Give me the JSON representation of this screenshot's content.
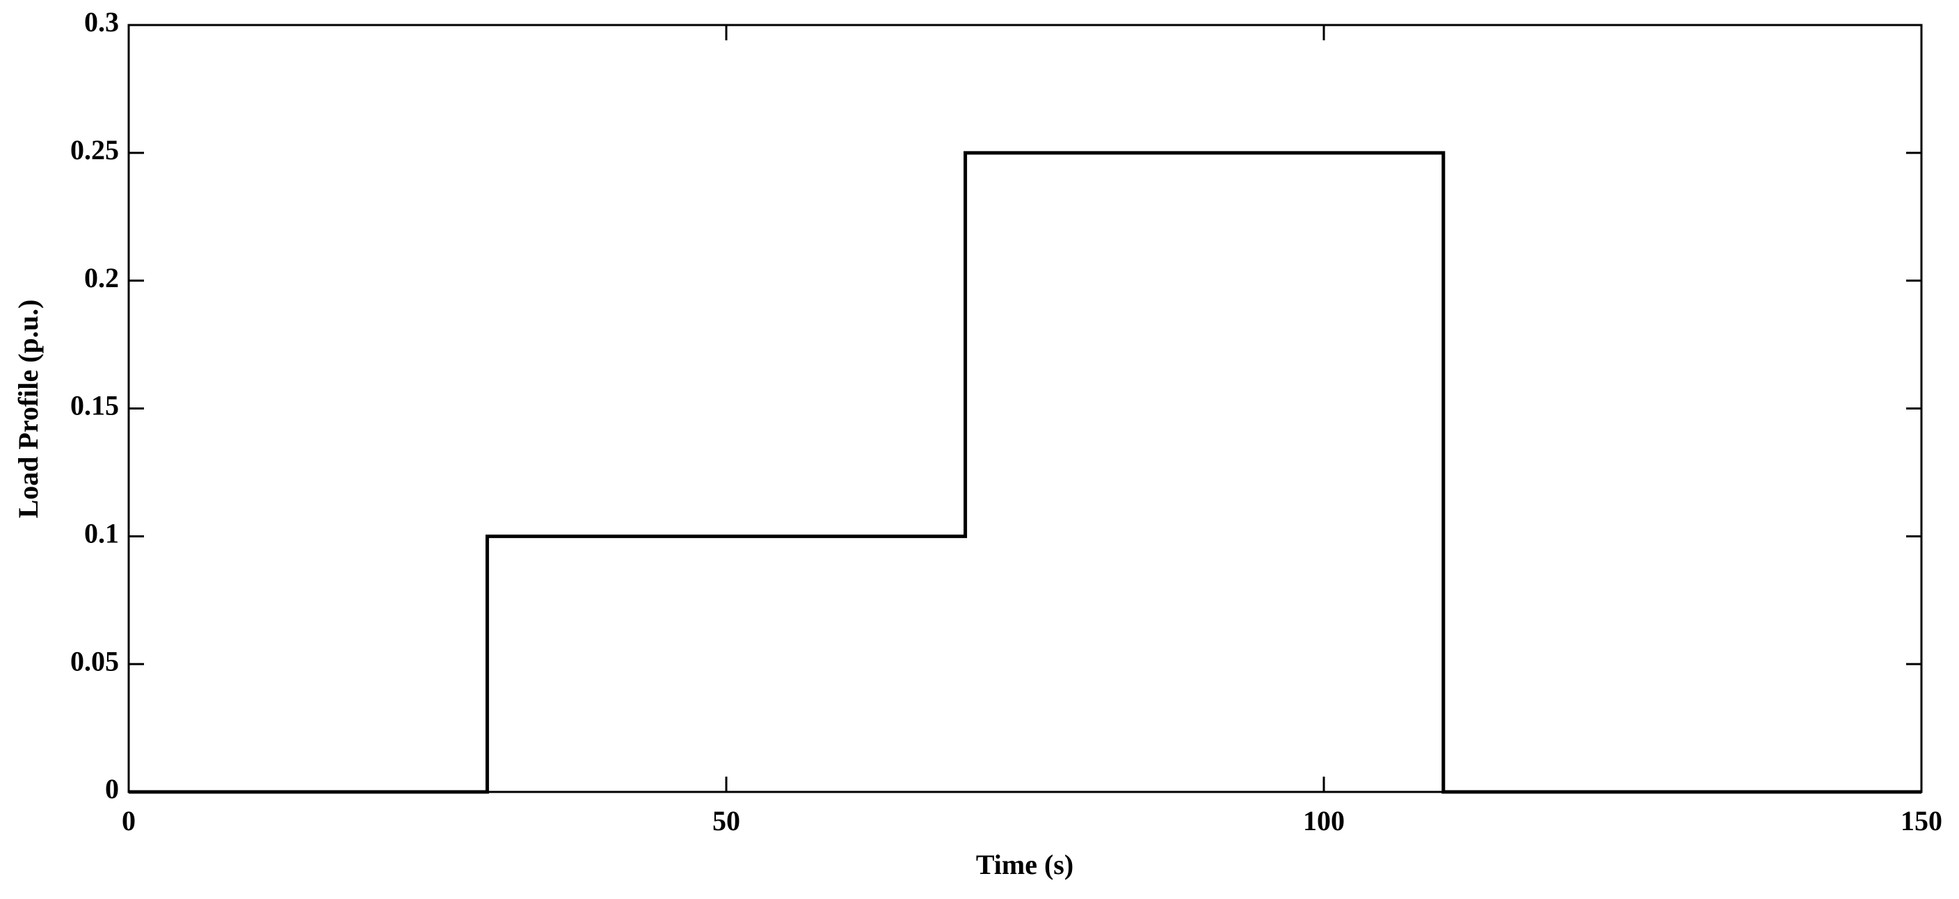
{
  "chart_data": {
    "type": "line",
    "x_label": "Time (s)",
    "y_label": "Load Profile (p.u.)",
    "x": [
      0,
      30,
      30,
      70,
      70,
      110,
      110,
      150
    ],
    "series": [
      {
        "color": "#000000",
        "values": [
          0,
          0,
          0.1,
          0.1,
          0.25,
          0.25,
          0,
          0
        ]
      }
    ],
    "xlim": [
      0,
      150
    ],
    "xticks": [
      0,
      50,
      100,
      150
    ],
    "ylim": [
      0,
      0.3
    ],
    "yticks": [
      0,
      0.05,
      0.1,
      0.15,
      0.2,
      0.25,
      0.3
    ],
    "grid": false
  }
}
